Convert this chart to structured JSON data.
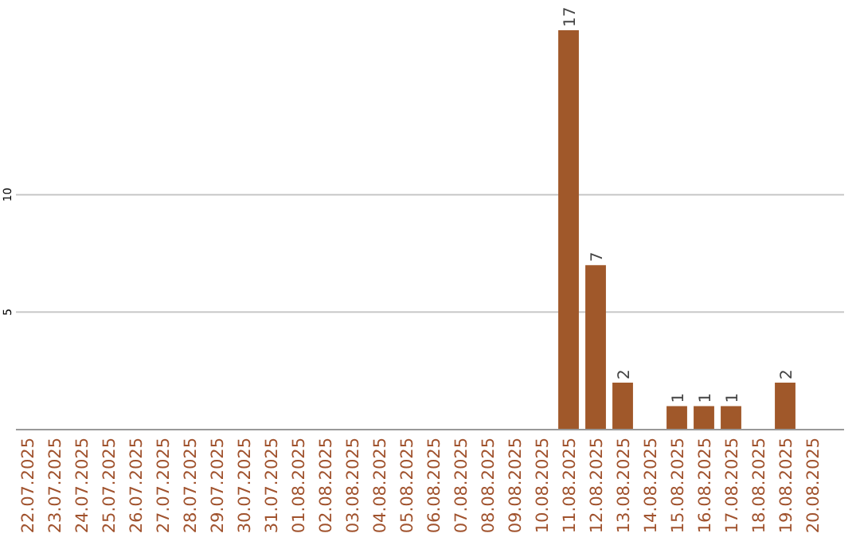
{
  "chart_data": {
    "type": "bar",
    "categories": [
      "22.07.2025",
      "23.07.2025",
      "24.07.2025",
      "25.07.2025",
      "26.07.2025",
      "27.07.2025",
      "28.07.2025",
      "29.07.2025",
      "30.07.2025",
      "31.07.2025",
      "01.08.2025",
      "02.08.2025",
      "03.08.2025",
      "04.08.2025",
      "05.08.2025",
      "06.08.2025",
      "07.08.2025",
      "08.08.2025",
      "09.08.2025",
      "10.08.2025",
      "11.08.2025",
      "12.08.2025",
      "13.08.2025",
      "14.08.2025",
      "15.08.2025",
      "16.08.2025",
      "17.08.2025",
      "18.08.2025",
      "19.08.2025",
      "20.08.2025"
    ],
    "values": [
      0,
      0,
      0,
      0,
      0,
      0,
      0,
      0,
      0,
      0,
      0,
      0,
      0,
      0,
      0,
      0,
      0,
      0,
      0,
      0,
      17,
      7,
      2,
      0,
      1,
      1,
      1,
      0,
      2,
      0
    ],
    "value_labels": [
      null,
      null,
      null,
      null,
      null,
      null,
      null,
      null,
      null,
      null,
      null,
      null,
      null,
      null,
      null,
      null,
      null,
      null,
      null,
      null,
      "17",
      "7",
      "2",
      null,
      "1",
      "1",
      "1",
      null,
      "2",
      null
    ],
    "color": "#a0582a",
    "ylim": [
      0,
      17
    ],
    "yticks": [
      5,
      10
    ],
    "grid": "y"
  }
}
